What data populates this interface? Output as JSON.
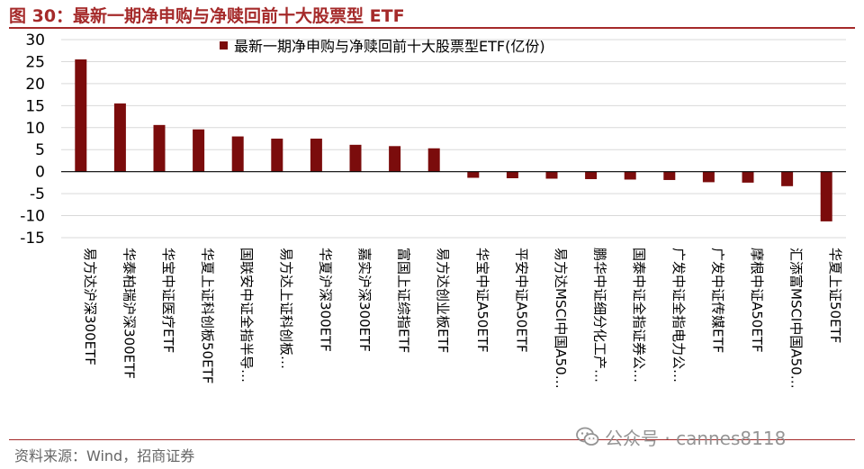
{
  "figure": {
    "title": "图 30：最新一期净申购与净赎回前十大股票型 ETF",
    "source": "资料来源：Wind，招商证券",
    "watermark_text": "公众号 · cannes8118",
    "watermark_icon": "wechat-icon"
  },
  "colors": {
    "bar": "#7b0c0c",
    "title": "#a52a2a",
    "grid": "#d9d9d9"
  },
  "chart_data": {
    "type": "bar",
    "legend": {
      "label": "最新一期净申购与净赎回前十大股票型ETF(亿份)",
      "position": "top-center"
    },
    "ylim": [
      -15,
      30
    ],
    "yticks": [
      30,
      25,
      20,
      15,
      10,
      5,
      0,
      -5,
      -10,
      -15
    ],
    "grid": true,
    "categories": [
      "易方达沪深300ETF",
      "华泰柏瑞沪深300ETF",
      "华宝中证医疗ETF",
      "华夏上证科创板50ETF",
      "国联安中证全指半导…",
      "易方达上证科创板…",
      "华夏沪深300ETF",
      "嘉实沪深300ETF",
      "富国上证综指ETF",
      "易方达创业板ETF",
      "华宝中证A50ETF",
      "平安中证A50ETF",
      "易方达MSCI中国A50…",
      "鹏华中证细分化工产…",
      "国泰中证全指证券公…",
      "广发中证全指电力公…",
      "广发中证传媒ETF",
      "摩根中证A50ETF",
      "汇添富MSCI中国A50…",
      "华夏上证50ETF"
    ],
    "values": [
      25.5,
      15.5,
      10.6,
      9.6,
      8.0,
      7.5,
      7.5,
      6.1,
      5.8,
      5.3,
      -1.4,
      -1.5,
      -1.6,
      -1.7,
      -1.8,
      -1.9,
      -2.4,
      -2.5,
      -3.3,
      -11.3
    ]
  }
}
